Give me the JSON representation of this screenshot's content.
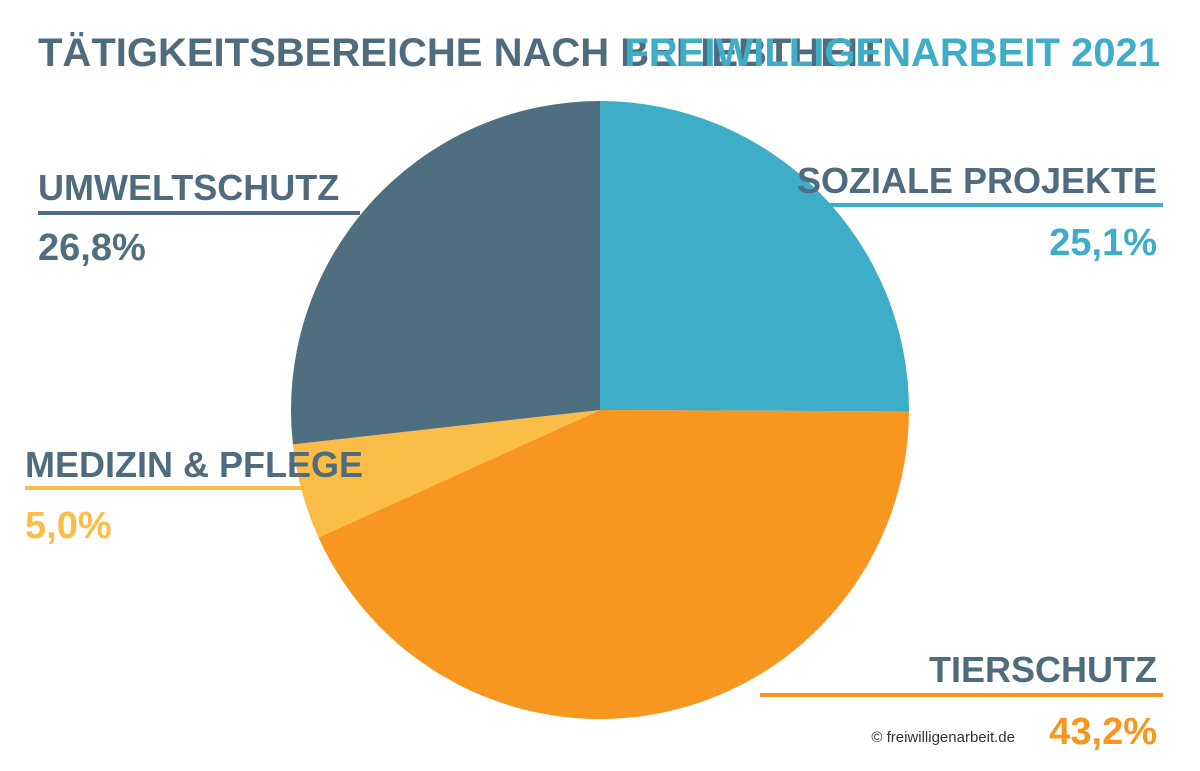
{
  "colors": {
    "title": "#4f6b7e",
    "subtitle": "#3eadc8",
    "credit": "#333333"
  },
  "credit": "© freiwilligenarbeit.de",
  "chart_data": {
    "type": "pie",
    "title": "TÄTIGKEITSBEREICHE NACH BELIEBTHEIT",
    "subtitle": "FREIWILLIGENARBEIT 2021",
    "start_angle_deg": 0,
    "direction": "clockwise",
    "legend": "none",
    "slices": [
      {
        "label": "SOZIALE PROJEKTE",
        "value": 25.1,
        "value_label": "25,1%",
        "color": "#3eadc8",
        "label_color": "#4f6b7e"
      },
      {
        "label": "TIERSCHUTZ",
        "value": 43.2,
        "value_label": "43,2%",
        "color": "#f7971f",
        "label_color": "#4f6b7e"
      },
      {
        "label": "MEDIZIN & PFLEGE",
        "value": 5.0,
        "value_label": "5,0%",
        "color": "#fbbd48",
        "label_color": "#4f6b7e"
      },
      {
        "label": "UMWELTSCHUTZ",
        "value": 26.8,
        "value_label": "26,8%",
        "color": "#4f6f80",
        "label_color": "#4f6b7e"
      }
    ]
  }
}
